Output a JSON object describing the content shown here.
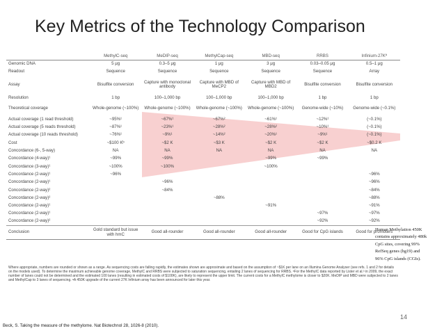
{
  "title": "Key Metrics of the Technology Comparison",
  "colors": {
    "wedge": "#f7c8c8"
  },
  "table": {
    "columns": [
      "MethylC-seq",
      "MeDIP-seq",
      "MethylCap-seq",
      "MBD-seq",
      "RRBS",
      "Infinium-27Kª"
    ],
    "rows": [
      {
        "label": "Genomic DNA",
        "cells": [
          "5 μg",
          "0.3–5 μg",
          "1 μg",
          "3 μg",
          "0.03–0.05 μg",
          "0.5–1 μg"
        ]
      },
      {
        "label": "Readout",
        "cells": [
          "Sequence",
          "Sequence",
          "Sequence",
          "Sequence",
          "Sequence",
          "Array"
        ]
      },
      {
        "label": "Assay",
        "cells": [
          "Bisulfite conversion",
          "Capture with monoclonal antibody",
          "Capture with MBD of MeCP2",
          "Capture with MBD of MBD2",
          "Bisulfite conversion",
          "Bisulfite conversion"
        ]
      },
      {
        "label": "Resolution",
        "cells": [
          "1 bp",
          "100–1,000 bp",
          "100–1,000 bp",
          "100–1,000 bp",
          "1 bp",
          "1 bp"
        ]
      },
      {
        "label": "Theoretical coverage",
        "cells": [
          "Whole-genome (~100%)",
          "Whole-genome (~100%)",
          "Whole-genome (~100%)",
          "Whole-genome (~100%)",
          "Genome-wide (~10%)",
          "Genome-wide (~0.1%)"
        ]
      },
      {
        "label": "Actual coverage (1 read threshold)",
        "cells": [
          "~95%¹",
          "~67%¹",
          "~67%²",
          "~61%¹",
          "~12%¹",
          "(~0.1%)"
        ]
      },
      {
        "label": "Actual coverage (5 reads threshold)",
        "cells": [
          "~87%¹",
          "~23%¹",
          "~28%²",
          "~28%²",
          "~10%¹",
          "(~0.1%)"
        ]
      },
      {
        "label": "Actual coverage (10 reads threshold)",
        "cells": [
          "~76%¹",
          "~9%¹",
          "~14%²",
          "~20%¹",
          "~9%¹",
          "(~0.1%)"
        ]
      },
      {
        "label": "Cost",
        "cells": [
          "~$100 Kᵇ",
          "~$2 K",
          "~$3 K",
          "~$2 K",
          "~$2 K",
          "~$0.2 K"
        ]
      },
      {
        "label": "Concordance (6-, 5-way)",
        "cells": [
          "NA",
          "NA",
          "NA",
          "NA",
          "NA",
          "NA"
        ]
      },
      {
        "label": "Concordance (4-way)¹",
        "cells": [
          "~99%",
          "~99%",
          "",
          "~99%",
          "~99%",
          ""
        ]
      },
      {
        "label": "Concordance (3-way)¹",
        "cells": [
          "~100%",
          "~100%",
          "",
          "~100%",
          "",
          ""
        ]
      },
      {
        "label": "Concordance (2-way)¹",
        "cells": [
          "~96%",
          "",
          "",
          "",
          "",
          "~96%"
        ]
      },
      {
        "label": "Concordance (2-way)¹",
        "cells": [
          "",
          "~96%",
          "",
          "",
          "",
          "~96%"
        ]
      },
      {
        "label": "Concordance (2-way)²",
        "cells": [
          "",
          "~84%",
          "",
          "",
          "",
          "~84%"
        ]
      },
      {
        "label": "Concordance (2-way)²",
        "cells": [
          "",
          "",
          "~88%",
          "",
          "",
          "~88%"
        ]
      },
      {
        "label": "Concordance (2-way)¹",
        "cells": [
          "",
          "",
          "",
          "~91%",
          "",
          "~91%"
        ]
      },
      {
        "label": "Concordance (2-way)¹",
        "cells": [
          "",
          "",
          "",
          "",
          "~97%",
          "~97%"
        ]
      },
      {
        "label": "Concordance (2-way)²",
        "cells": [
          "",
          "",
          "",
          "",
          "~92%",
          "~92%"
        ]
      },
      {
        "label": "Conclusion",
        "cells": [
          "Gold standard but issue with hmC",
          "Good all-rounder",
          "Good all-rounder",
          "Good all-rounder",
          "Good for CpG islands",
          "Good for promoters"
        ]
      }
    ],
    "footnote": "Where appropriate, numbers are rounded or shown as a range. As sequencing costs are falling rapidly, the estimates shown are approximate and based on the assumption of ~$1K per lane on an Illumina Genome Analyser (see refs. 1 and 2 for details on the models used). To determine the maximum achievable genome coverage, MethylC and RRBS were subjected to saturation sequencing, entailing 2 lanes of sequencing for RRBS. ᵇFor the MethylC data reported by Lister et al.³ in 2009, the exact number of lanes could not be determined and the estimated 100 lanes (resulting in estimated costs of $100K), are likely to represent the upper limit. The current costs for a MethylC methylome is closer to $20K. MeDIP and MBD were subjected to 2 lanes and MethylCap to 3 lanes of sequencing. ᵃA 450K upgrade of the current 27K Infinium array has been announced for later this year."
  },
  "note": [
    "Human Methylation 450K",
    "contains approximately 480k",
    "CpG sites, covering 99%",
    "RefSeq genes (hg19) and",
    "96% CpG islands (CGIs)."
  ],
  "page_number": "14",
  "citation": "Beck, S. Taking the measure of the methylome. Nat Biotechnol 28, 1026-8 (2010)."
}
